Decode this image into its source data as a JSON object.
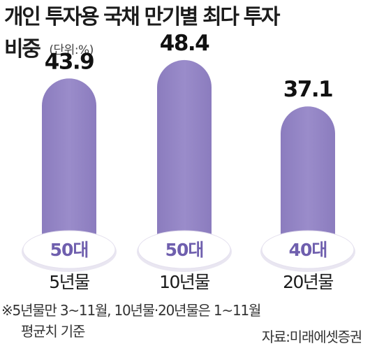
{
  "header": {
    "title_line1": "개인 투자용 국채 만기별 최다 투자",
    "title_line2": "비중",
    "unit": "(단위:%)"
  },
  "footer": {
    "note_line1": "※5년물만 3~11월, 10년물·20년물은 1~11월",
    "note_line2": "평균치 기준",
    "source": "자료:미래에셋증권"
  },
  "chart_data": {
    "type": "bar",
    "title": "개인 투자용 국채 만기별 최다 투자 비중",
    "unit": "(단위:%)",
    "categories": [
      "5년물",
      "10년물",
      "20년물"
    ],
    "values": [
      43.9,
      48.4,
      37.1
    ],
    "age_groups": [
      "50대",
      "50대",
      "40대"
    ],
    "value_labels": [
      "43.9",
      "48.4",
      "37.1"
    ],
    "bar_color": "#9385c4",
    "badge_text_color": "#6f5fae",
    "grid": false,
    "legend": "none"
  }
}
